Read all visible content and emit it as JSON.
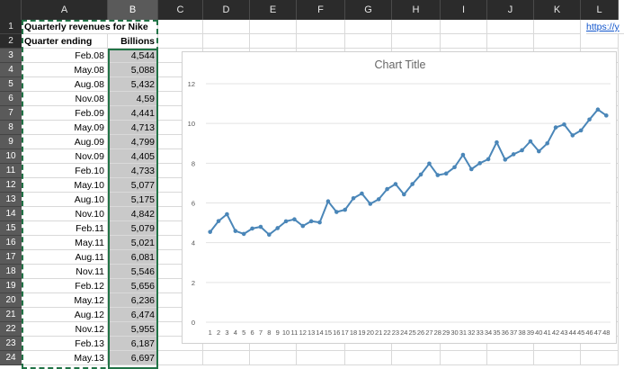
{
  "columns": [
    "A",
    "B",
    "C",
    "D",
    "E",
    "F",
    "G",
    "H",
    "I",
    "J",
    "K",
    "L"
  ],
  "selected_column": "B",
  "rows": [
    {
      "n": "1",
      "a": "Quarterly revenues for Nike",
      "b": ""
    },
    {
      "n": "2",
      "a": "Quarter ending",
      "b": "Billions"
    },
    {
      "n": "3",
      "a": "Feb.08",
      "b": "4,544"
    },
    {
      "n": "4",
      "a": "May.08",
      "b": "5,088"
    },
    {
      "n": "5",
      "a": "Aug.08",
      "b": "5,432"
    },
    {
      "n": "6",
      "a": "Nov.08",
      "b": "4,59"
    },
    {
      "n": "7",
      "a": "Feb.09",
      "b": "4,441"
    },
    {
      "n": "8",
      "a": "May.09",
      "b": "4,713"
    },
    {
      "n": "9",
      "a": "Aug.09",
      "b": "4,799"
    },
    {
      "n": "10",
      "a": "Nov.09",
      "b": "4,405"
    },
    {
      "n": "11",
      "a": "Feb.10",
      "b": "4,733"
    },
    {
      "n": "12",
      "a": "May.10",
      "b": "5,077"
    },
    {
      "n": "13",
      "a": "Aug.10",
      "b": "5,175"
    },
    {
      "n": "14",
      "a": "Nov.10",
      "b": "4,842"
    },
    {
      "n": "15",
      "a": "Feb.11",
      "b": "5,079"
    },
    {
      "n": "16",
      "a": "May.11",
      "b": "5,021"
    },
    {
      "n": "17",
      "a": "Aug.11",
      "b": "6,081"
    },
    {
      "n": "18",
      "a": "Nov.11",
      "b": "5,546"
    },
    {
      "n": "19",
      "a": "Feb.12",
      "b": "5,656"
    },
    {
      "n": "20",
      "a": "May.12",
      "b": "6,236"
    },
    {
      "n": "21",
      "a": "Aug.12",
      "b": "6,474"
    },
    {
      "n": "22",
      "a": "Nov.12",
      "b": "5,955"
    },
    {
      "n": "23",
      "a": "Feb.13",
      "b": "6,187"
    },
    {
      "n": "24",
      "a": "May.13",
      "b": "6,697"
    }
  ],
  "link_cell": "https://y",
  "chart_data": {
    "type": "line",
    "title": "Chart Title",
    "x": [
      1,
      2,
      3,
      4,
      5,
      6,
      7,
      8,
      9,
      10,
      11,
      12,
      13,
      14,
      15,
      16,
      17,
      18,
      19,
      20,
      21,
      22,
      23,
      24,
      25,
      26,
      27,
      28,
      29,
      30,
      31,
      32,
      33,
      34,
      35,
      36,
      37,
      38,
      39,
      40,
      41,
      42,
      43,
      44,
      45,
      46,
      47,
      48
    ],
    "values": [
      4.544,
      5.088,
      5.432,
      4.59,
      4.441,
      4.713,
      4.799,
      4.405,
      4.733,
      5.077,
      5.175,
      4.842,
      5.079,
      5.021,
      6.081,
      5.546,
      5.656,
      6.236,
      6.474,
      5.955,
      6.187,
      6.697,
      6.95,
      6.43,
      6.95,
      7.43,
      7.98,
      7.4,
      7.48,
      7.8,
      8.42,
      7.7,
      8.0,
      8.2,
      9.05,
      8.18,
      8.45,
      8.65,
      9.1,
      8.6,
      9.0,
      9.8,
      9.95,
      9.4,
      9.65,
      10.2,
      10.7,
      10.4
    ],
    "ylim": [
      0,
      12
    ],
    "yticks": [
      0,
      2,
      4,
      6,
      8,
      10,
      12
    ],
    "grid": true,
    "legend": "none",
    "line_color": "#4a86b8"
  }
}
